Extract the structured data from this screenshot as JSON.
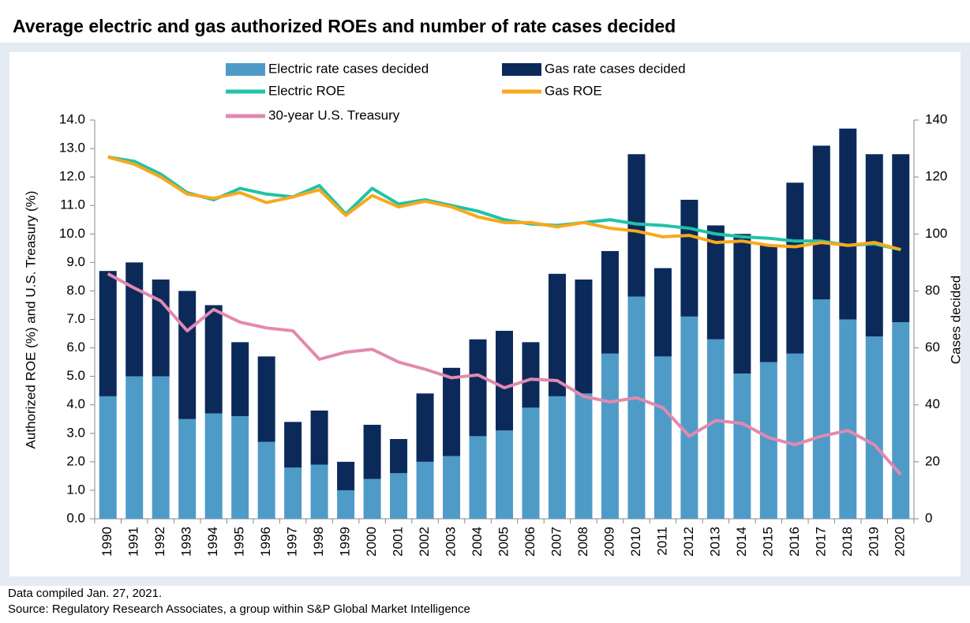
{
  "chart_data": {
    "type": "bar-line",
    "title": "Average electric and gas authorized ROEs and number of rate cases decided",
    "ylabel": "Authorized ROE  (%) and U.S. Treasury (%)",
    "y2label": "Cases decided",
    "categories": [
      "1990",
      "1991",
      "1992",
      "1993",
      "1994",
      "1995",
      "1996",
      "1997",
      "1998",
      "1999",
      "2000",
      "2001",
      "2002",
      "2003",
      "2004",
      "2005",
      "2006",
      "2007",
      "2008",
      "2009",
      "2010",
      "2011",
      "2012",
      "2013",
      "2014",
      "2015",
      "2016",
      "2017",
      "2018",
      "2019",
      "2020"
    ],
    "series": [
      {
        "name": "Electric rate cases decided",
        "type": "bar",
        "axis": "y2",
        "color": "#4f9bc8",
        "values": [
          43,
          50,
          50,
          35,
          37,
          36,
          27,
          18,
          19,
          10,
          14,
          16,
          20,
          22,
          29,
          31,
          39,
          43,
          44,
          58,
          78,
          57,
          71,
          63,
          51,
          55,
          58,
          77,
          70,
          64,
          69
        ]
      },
      {
        "name": "Gas rate cases decided",
        "type": "bar",
        "axis": "y2",
        "color": "#0b2a5a",
        "values": [
          44,
          40,
          34,
          45,
          38,
          26,
          30,
          16,
          19,
          10,
          19,
          12,
          24,
          31,
          34,
          35,
          23,
          43,
          40,
          36,
          50,
          31,
          41,
          40,
          49,
          41,
          60,
          54,
          67,
          64,
          59
        ]
      },
      {
        "name": "Electric ROE",
        "type": "line",
        "color": "#1fc3a8",
        "values": [
          12.7,
          12.55,
          12.1,
          11.45,
          11.2,
          11.6,
          11.4,
          11.3,
          11.7,
          10.7,
          11.6,
          11.05,
          11.2,
          11.0,
          10.8,
          10.5,
          10.35,
          10.3,
          10.4,
          10.5,
          10.35,
          10.3,
          10.2,
          10.0,
          9.9,
          9.85,
          9.75,
          9.75,
          9.6,
          9.65,
          9.45
        ]
      },
      {
        "name": "Gas ROE",
        "type": "line",
        "color": "#f9a81c",
        "values": [
          12.7,
          12.45,
          12.0,
          11.4,
          11.25,
          11.45,
          11.1,
          11.3,
          11.55,
          10.65,
          11.35,
          10.95,
          11.15,
          10.95,
          10.6,
          10.4,
          10.4,
          10.25,
          10.4,
          10.2,
          10.1,
          9.9,
          9.95,
          9.7,
          9.75,
          9.6,
          9.55,
          9.7,
          9.6,
          9.7,
          9.45
        ]
      },
      {
        "name": "30-year U.S. Treasury",
        "type": "line",
        "color": "#e289b0",
        "values": [
          8.6,
          8.1,
          7.65,
          6.6,
          7.35,
          6.9,
          6.7,
          6.6,
          5.6,
          5.85,
          5.95,
          5.5,
          5.25,
          4.95,
          5.05,
          4.6,
          4.9,
          4.85,
          4.3,
          4.1,
          4.25,
          3.9,
          2.9,
          3.45,
          3.35,
          2.85,
          2.6,
          2.9,
          3.1,
          2.6,
          1.55
        ]
      }
    ],
    "ylim": [
      0,
      14
    ],
    "yticks": [
      {
        "value": 0,
        "label": "0.0"
      },
      {
        "value": 1,
        "label": "1.0"
      },
      {
        "value": 2,
        "label": "2.0"
      },
      {
        "value": 3,
        "label": "3.0"
      },
      {
        "value": 4,
        "label": "4.0"
      },
      {
        "value": 5,
        "label": "5.0"
      },
      {
        "value": 6,
        "label": "6.0"
      },
      {
        "value": 7,
        "label": "7.0"
      },
      {
        "value": 8,
        "label": "8.0"
      },
      {
        "value": 9,
        "label": "9.0"
      },
      {
        "value": 10,
        "label": "10.0"
      },
      {
        "value": 11,
        "label": "11.0"
      },
      {
        "value": 12,
        "label": "12.0"
      },
      {
        "value": 13,
        "label": "13.0"
      },
      {
        "value": 14,
        "label": "14.0"
      }
    ],
    "y2lim": [
      0,
      140
    ],
    "y2ticks": [
      0,
      20,
      40,
      60,
      80,
      100,
      120,
      140
    ],
    "grid": false,
    "footnotes": [
      "Data compiled Jan. 27, 2021.",
      "Source: Regulatory Research Associates, a group within S&P Global Market Intelligence"
    ]
  }
}
